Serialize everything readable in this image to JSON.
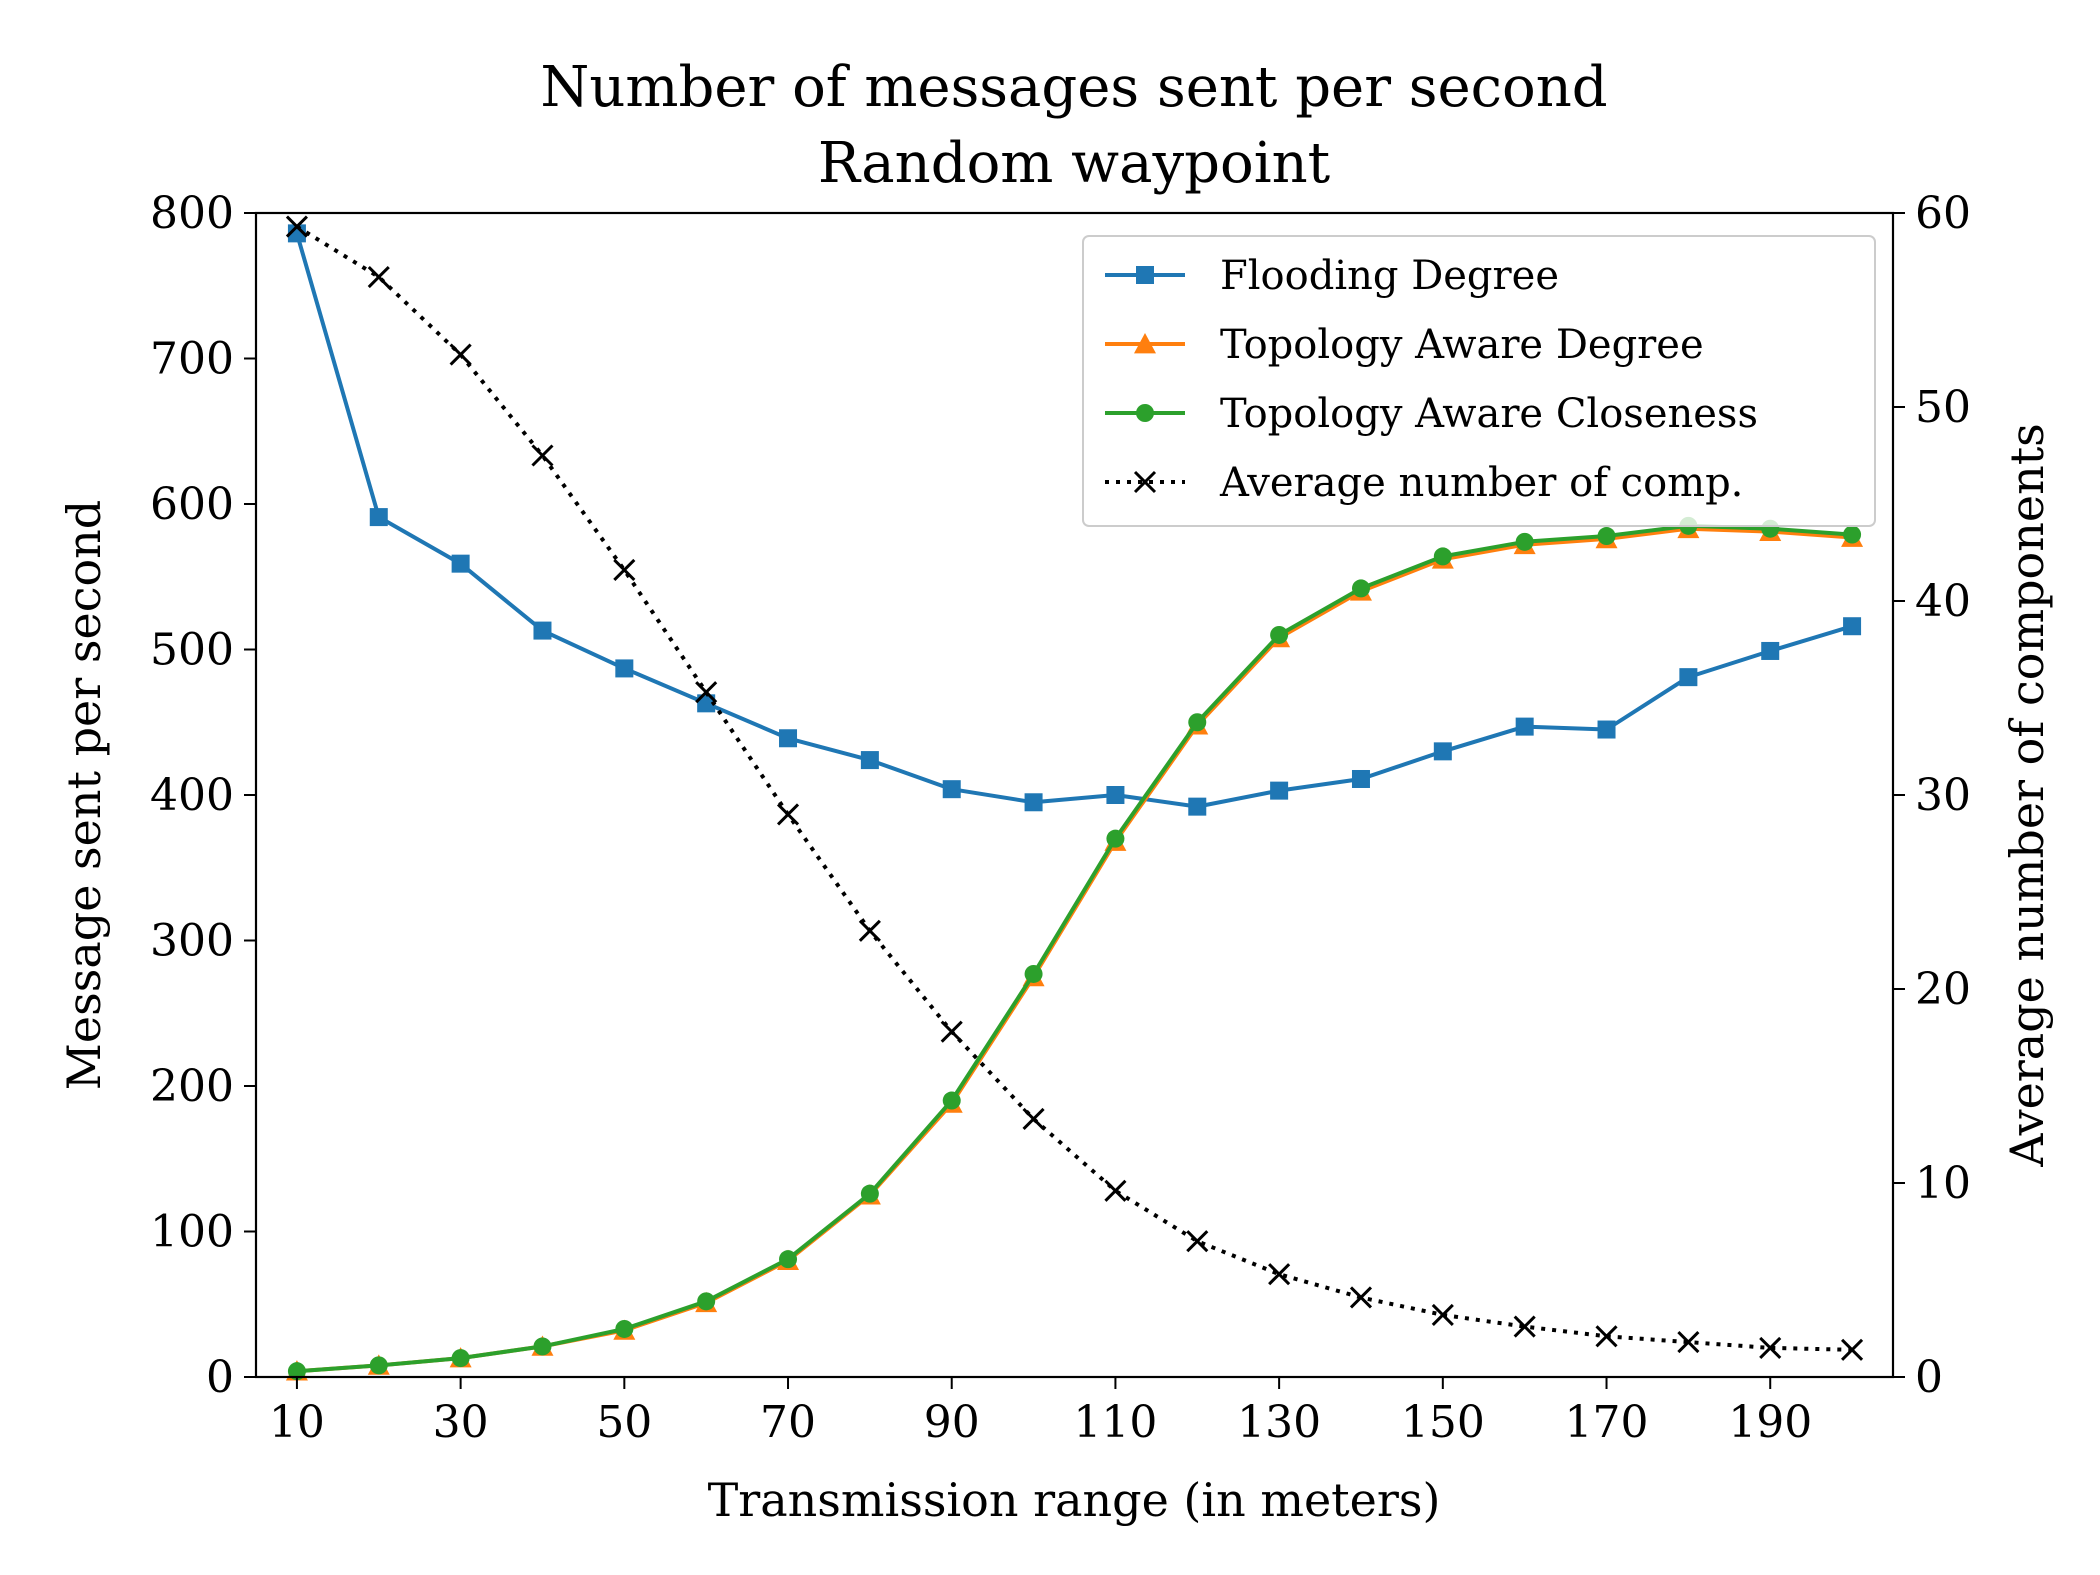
{
  "chart_data": {
    "type": "line",
    "title": "Number of messages sent per second",
    "subtitle": "Random waypoint",
    "xlabel": "Transmission range (in meters)",
    "ylabel": "Message sent per second",
    "y2label": "Average number of components",
    "x": [
      10,
      20,
      30,
      40,
      50,
      60,
      70,
      80,
      90,
      100,
      110,
      120,
      130,
      140,
      150,
      160,
      170,
      180,
      190,
      200
    ],
    "xlim": [
      5,
      205
    ],
    "ylim": [
      0,
      800
    ],
    "y2lim": [
      0,
      60
    ],
    "xticks": [
      10,
      30,
      50,
      70,
      90,
      110,
      130,
      150,
      170,
      190
    ],
    "yticks": [
      0,
      100,
      200,
      300,
      400,
      500,
      600,
      700,
      800
    ],
    "y2ticks": [
      0,
      10,
      20,
      30,
      40,
      50,
      60
    ],
    "grid": false,
    "legend_position": "top-right",
    "series": [
      {
        "name": "Flooding Degree",
        "axis": "left",
        "color": "#1f77b4",
        "marker": "square",
        "linestyle": "solid",
        "values": [
          786,
          591,
          559,
          513,
          487,
          463,
          439,
          424,
          404,
          395,
          400,
          392,
          403,
          411,
          430,
          447,
          445,
          481,
          499,
          516
        ]
      },
      {
        "name": "Topology Aware Degree",
        "axis": "left",
        "color": "#ff7f0e",
        "marker": "triangle",
        "linestyle": "solid",
        "values": [
          4,
          8,
          13,
          21,
          32,
          51,
          80,
          125,
          188,
          275,
          368,
          448,
          508,
          540,
          562,
          572,
          576,
          583,
          581,
          577
        ]
      },
      {
        "name": "Topology Aware Closeness",
        "axis": "left",
        "color": "#2ca02c",
        "marker": "circle",
        "linestyle": "solid",
        "values": [
          4,
          8,
          13,
          21,
          33,
          52,
          81,
          126,
          190,
          277,
          370,
          450,
          510,
          542,
          564,
          574,
          578,
          585,
          583,
          579
        ]
      },
      {
        "name": "Average number of comp.",
        "axis": "right",
        "color": "#000000",
        "marker": "x",
        "linestyle": "dotted",
        "values": [
          59.3,
          56.7,
          52.7,
          47.5,
          41.6,
          35.3,
          29.0,
          23.0,
          17.8,
          13.3,
          9.6,
          7.0,
          5.3,
          4.1,
          3.2,
          2.6,
          2.1,
          1.8,
          1.5,
          1.4
        ]
      }
    ]
  }
}
